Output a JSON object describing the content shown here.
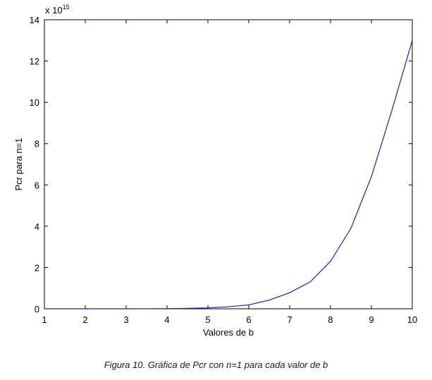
{
  "chart_data": {
    "type": "line",
    "xlabel": "Valores de b",
    "ylabel": "Pcr para n=1",
    "xlim": [
      1,
      10
    ],
    "ylim": [
      0,
      14
    ],
    "x_ticks": [
      1,
      2,
      3,
      4,
      5,
      6,
      7,
      8,
      9,
      10
    ],
    "y_ticks": [
      0,
      2,
      4,
      6,
      8,
      10,
      12,
      14
    ],
    "y_exponent_base": "x 10",
    "y_exponent_power": "15",
    "grid": false,
    "line_color": "#1f1fa8",
    "series": [
      {
        "x": [
          1,
          1.5,
          2,
          2.5,
          3,
          3.5,
          4,
          4.5,
          5,
          5.5,
          6,
          6.5,
          7,
          7.5,
          8,
          8.5,
          9,
          9.5,
          10
        ],
        "y": [
          0,
          0,
          0,
          0,
          0.001,
          0.003,
          0.008,
          0.02,
          0.045,
          0.1,
          0.19,
          0.42,
          0.78,
          1.3,
          2.3,
          3.9,
          6.4,
          9.6,
          13.0
        ]
      }
    ]
  },
  "caption": "Figura 10. Gráfica de Pcr con n=1 para cada valor de b"
}
